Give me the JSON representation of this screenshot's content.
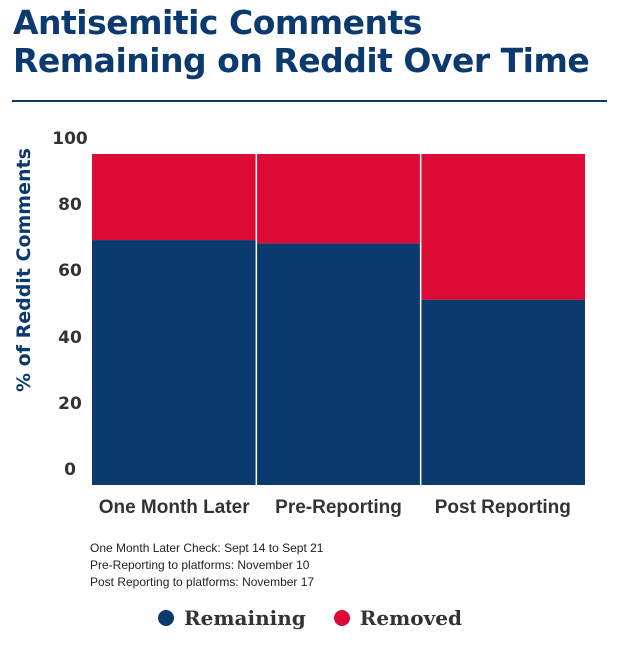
{
  "title": "Antisemitic Comments Remaining on Reddit Over Time",
  "notes": [
    "One Month Later Check: Sept 14 to Sept 21",
    "Pre-Reporting to platforms: November 10",
    "Post Reporting to platforms: November 17"
  ],
  "colors": {
    "title": "#0a3a6e",
    "remaining": "#0a3a6e",
    "removed": "#dc0a34"
  },
  "chart_data": {
    "type": "bar",
    "stacked": true,
    "title": "Antisemitic Comments Remaining on Reddit Over Time",
    "xlabel": "",
    "ylabel": "% of Reddit Comments",
    "ylim": [
      0,
      100
    ],
    "yticks": [
      0,
      20,
      40,
      60,
      80,
      100
    ],
    "categories": [
      "One Month Later",
      "Pre-Reporting",
      "Post Reporting"
    ],
    "series": [
      {
        "name": "Remaining",
        "color": "#0a3a6e",
        "values": [
          74,
          73,
          56
        ]
      },
      {
        "name": "Removed",
        "color": "#dc0a34",
        "values": [
          26,
          27,
          44
        ]
      }
    ],
    "legend": "bottom-center",
    "grid": false
  }
}
